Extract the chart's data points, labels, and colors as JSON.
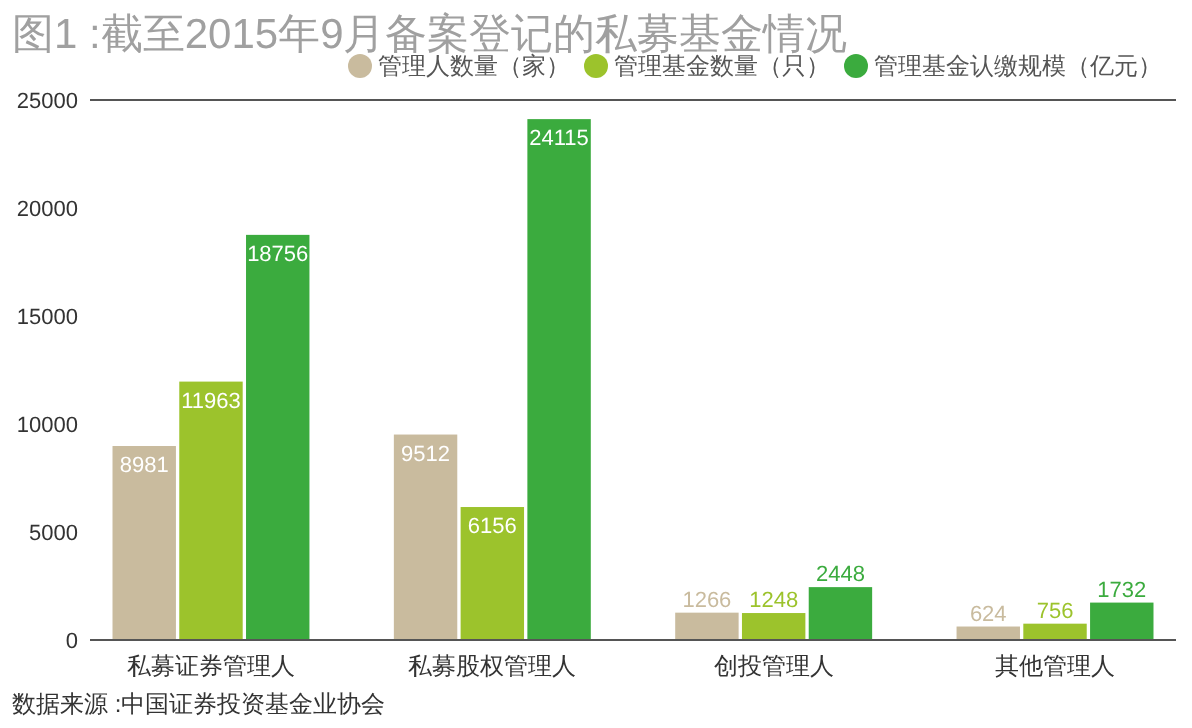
{
  "chart_data": {
    "type": "bar",
    "title": "图1 :截至2015年9月备案登记的私募基金情况",
    "categories": [
      "私募证券管理人",
      "私募股权管理人",
      "创投管理人",
      "其他管理人"
    ],
    "series": [
      {
        "name": "管理人数量（家）",
        "color": "#c9bb9e",
        "values": [
          8981,
          9512,
          1266,
          624
        ]
      },
      {
        "name": "管理基金数量（只）",
        "color": "#9cc32c",
        "values": [
          11963,
          6156,
          1248,
          756
        ]
      },
      {
        "name": "管理基金认缴规模（亿元）",
        "color": "#3bab3e",
        "values": [
          18756,
          24115,
          2448,
          1732
        ]
      }
    ],
    "ylim": [
      0,
      25000
    ],
    "yticks": [
      0,
      5000,
      10000,
      15000,
      20000,
      25000
    ],
    "grid": false,
    "legend": "top right",
    "data_labels": true,
    "annotations": [
      "数据来源 :中国证券投资基金业协会"
    ]
  }
}
